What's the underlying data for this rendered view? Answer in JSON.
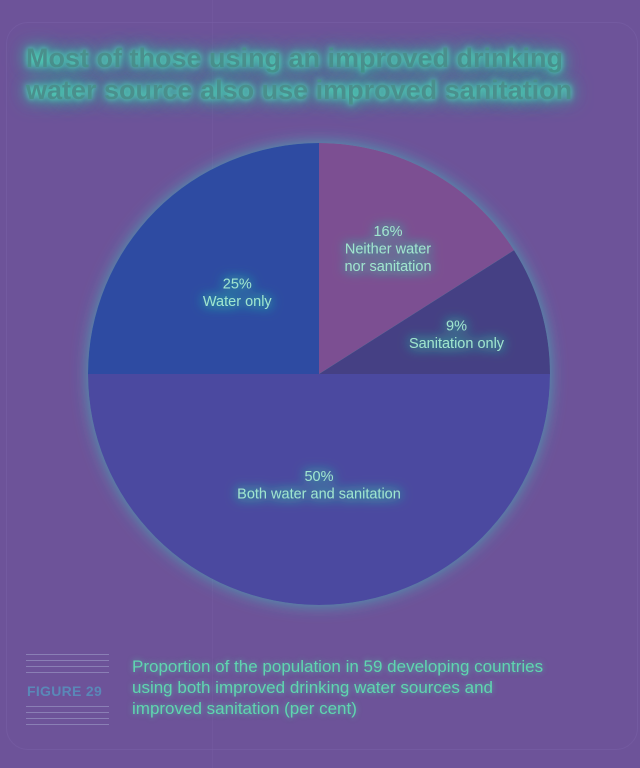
{
  "chart_data": {
    "type": "pie",
    "title": "Most of those using an improved drinking water source also use improved sanitation",
    "slices": [
      {
        "label": "Neither water nor sanitation",
        "value": 16,
        "display": "16%",
        "color": "#7b4f92"
      },
      {
        "label": "Sanitation only",
        "value": 9,
        "display": "9%",
        "color": "#453f84"
      },
      {
        "label": "Both water and sanitation",
        "value": 50,
        "display": "50%",
        "color": "#4c4aa0"
      },
      {
        "label": "Water only",
        "value": 25,
        "display": "25%",
        "color": "#2f4ba2"
      }
    ],
    "start": "12 o'clock",
    "direction": "clockwise"
  },
  "figure": {
    "label": "FIGURE 29",
    "caption": "Proportion of the population in 59 developing countries using both improved drinking water sources and improved sanitation (per cent)"
  },
  "colors": {
    "background": "#6d5399",
    "title": "#4a8f8c",
    "label_text": "#9fe6cf",
    "caption_text": "#5fd6b0",
    "figure_label": "#5a88b8"
  }
}
